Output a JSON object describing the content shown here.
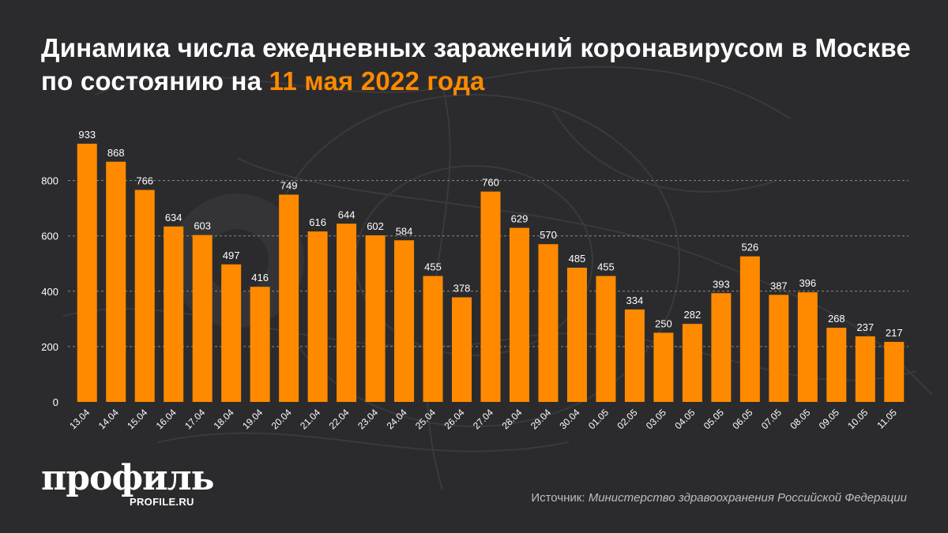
{
  "header": {
    "title_main": "Динамика числа ежедневных заражений коронавирусом в Москве по состоянию на",
    "title_date": "11 мая 2022 года"
  },
  "footer": {
    "logo_text": "профиль",
    "logo_url": "PROFILE.RU",
    "source_label": "Источник:",
    "source_value": "Министерство здравоохранения Российской Федерации"
  },
  "colors": {
    "background": "#2b2b2d",
    "bar": "#ff8a00",
    "accent": "#ff8a00",
    "text": "#ffffff"
  },
  "chart_data": {
    "type": "bar",
    "categories": [
      "13.04",
      "14.04",
      "15.04",
      "16.04",
      "17.04",
      "18.04",
      "19.04",
      "20.04",
      "21.04",
      "22.04",
      "23.04",
      "24.04",
      "25.04",
      "26.04",
      "27.04",
      "28.04",
      "29.04",
      "30.04",
      "01.05",
      "02.05",
      "03.05",
      "04.05",
      "05.05",
      "06.05",
      "07.05",
      "08.05",
      "09.05",
      "10.05",
      "11.05"
    ],
    "values": [
      933,
      868,
      766,
      634,
      603,
      497,
      416,
      749,
      616,
      644,
      602,
      584,
      455,
      378,
      760,
      629,
      570,
      485,
      455,
      334,
      250,
      282,
      393,
      526,
      387,
      396,
      268,
      237,
      217
    ],
    "yticks": [
      0,
      200,
      400,
      600,
      800
    ],
    "ylim": [
      0,
      933
    ],
    "grid": true,
    "title": "",
    "xlabel": "",
    "ylabel": ""
  }
}
